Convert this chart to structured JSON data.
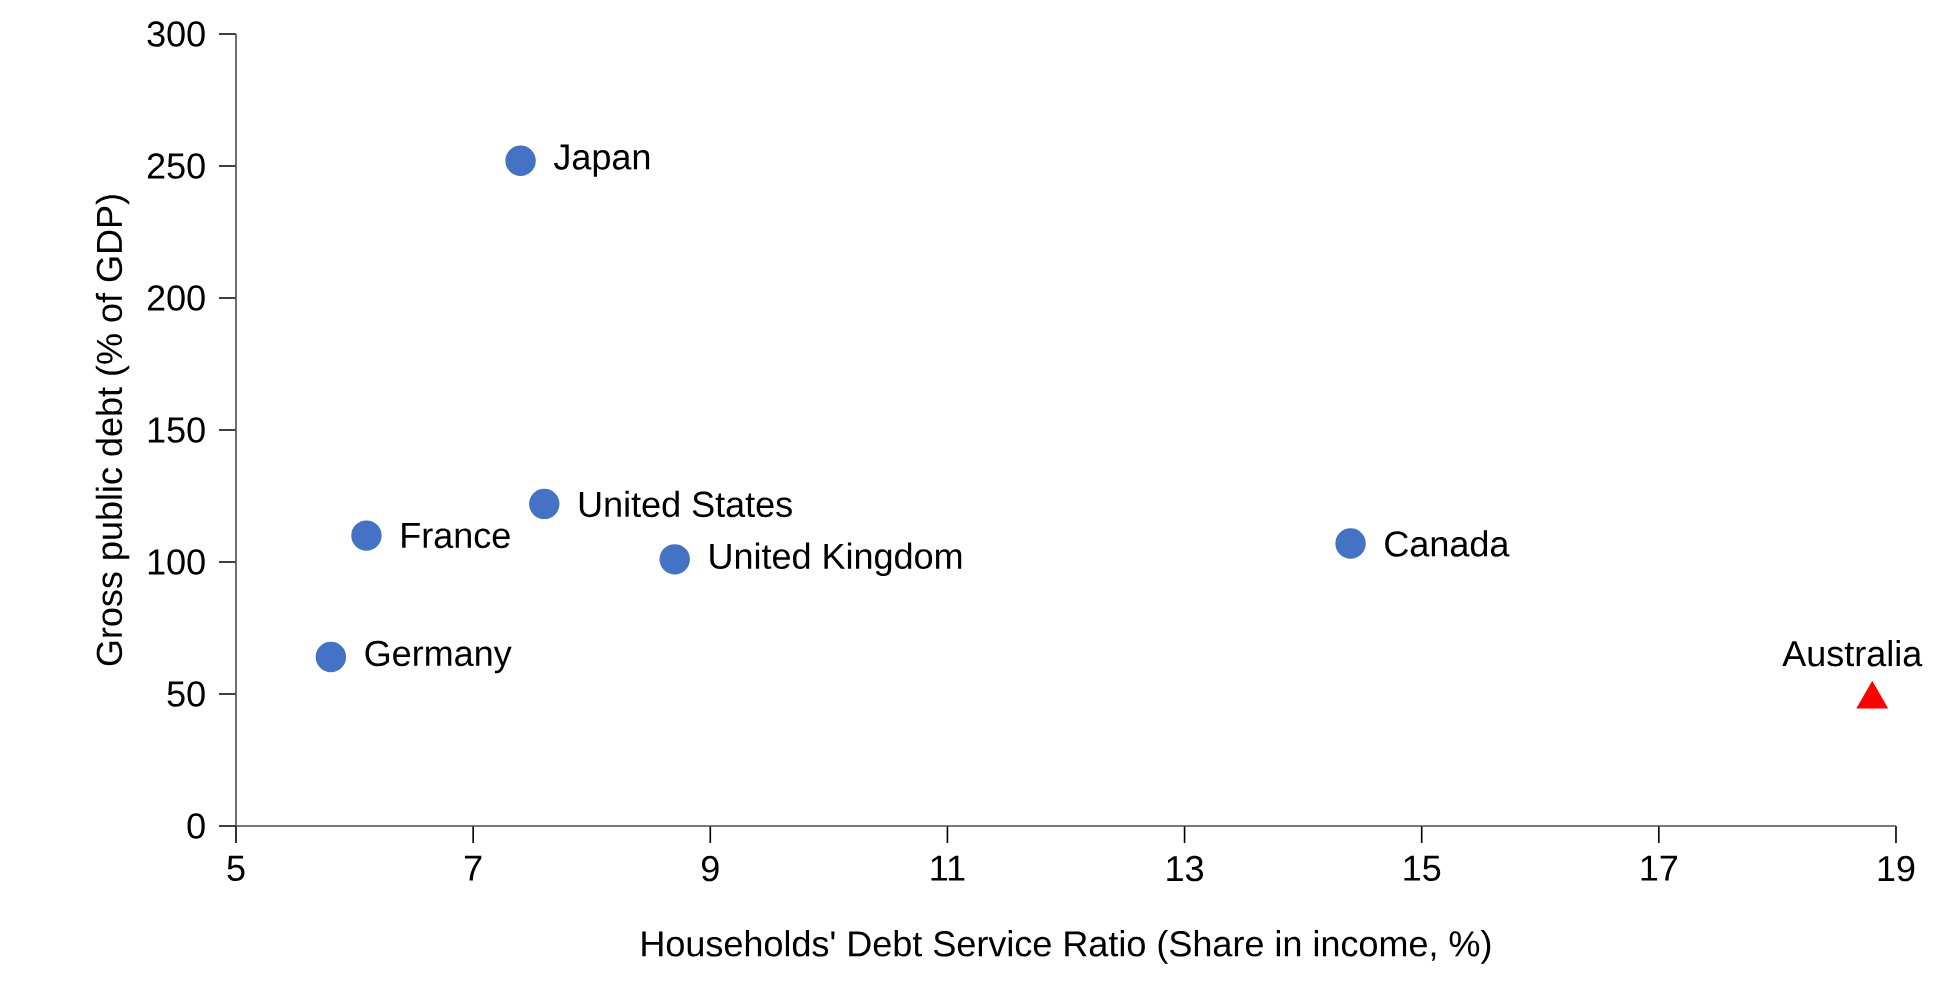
{
  "chart_data": {
    "type": "scatter",
    "xlabel": "Households' Debt Service Ratio (Share in income, %)",
    "ylabel": "Gross public debt (% of GDP)",
    "xlim": [
      5,
      19
    ],
    "ylim": [
      0,
      300
    ],
    "xticks": [
      5,
      7,
      9,
      11,
      13,
      15,
      17,
      19
    ],
    "yticks": [
      0,
      50,
      100,
      150,
      200,
      250,
      300
    ],
    "series": [
      {
        "color": "#4472c4",
        "marker": "circle",
        "x": [
          7.4,
          7.6,
          6.1,
          8.7,
          14.4,
          5.8
        ],
        "values": [
          252,
          122,
          110,
          101,
          107,
          64
        ]
      },
      {
        "color": "#ff0000",
        "marker": "triangle",
        "x": [
          18.8
        ],
        "values": [
          48
        ]
      }
    ],
    "annotations": [
      {
        "text": "Japan",
        "x": 7.4,
        "y": 252
      },
      {
        "text": "United States",
        "x": 7.6,
        "y": 122
      },
      {
        "text": "France",
        "x": 6.1,
        "y": 110
      },
      {
        "text": "United Kingdom",
        "x": 8.7,
        "y": 101
      },
      {
        "text": "Canada",
        "x": 14.4,
        "y": 107
      },
      {
        "text": "Germany",
        "x": 5.8,
        "y": 64
      },
      {
        "text": "Australia",
        "x": 18.8,
        "y": 48
      }
    ]
  }
}
